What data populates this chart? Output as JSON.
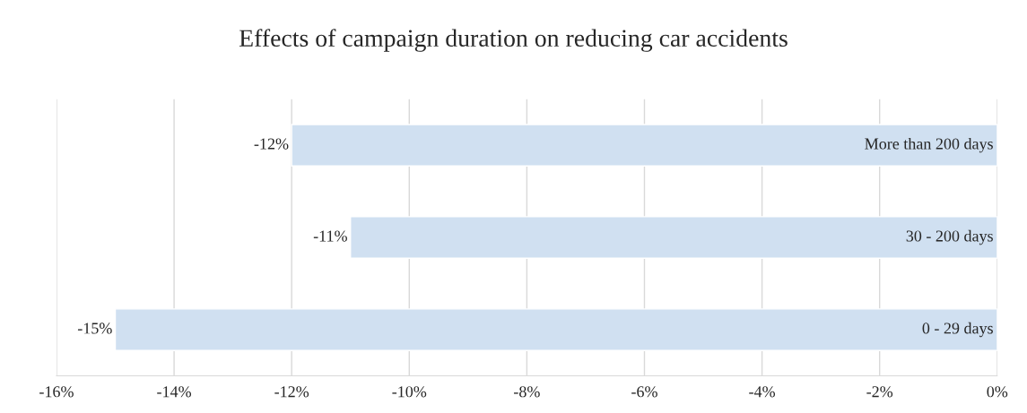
{
  "chart_data": {
    "type": "bar",
    "orientation": "horizontal",
    "title": "Effects of campaign duration on reducing car accidents",
    "categories": [
      "More than 200 days",
      "30 - 200 days",
      "0 - 29 days"
    ],
    "values": [
      -12,
      -11,
      -15
    ],
    "value_labels": [
      "-12%",
      "-11%",
      "-15%"
    ],
    "color": "#d0e0f1",
    "xlim": [
      -16,
      0
    ],
    "xticks": [
      {
        "value": -16,
        "label": "-16%"
      },
      {
        "value": -14,
        "label": "-14%"
      },
      {
        "value": -12,
        "label": "-12%"
      },
      {
        "value": -10,
        "label": "-10%"
      },
      {
        "value": -8,
        "label": "-8%"
      },
      {
        "value": -6,
        "label": "-6%"
      },
      {
        "value": -4,
        "label": "-4%"
      },
      {
        "value": -2,
        "label": "-2%"
      },
      {
        "value": 0,
        "label": "0%"
      }
    ],
    "grid": "x",
    "legend": false
  }
}
